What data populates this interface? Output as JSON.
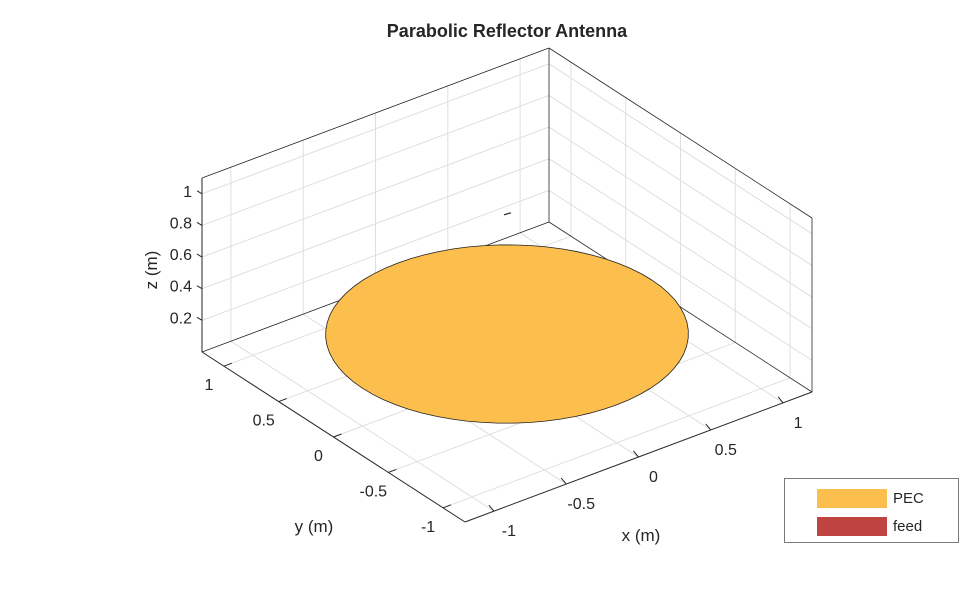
{
  "chart_data": {
    "type": "surface3d",
    "title": "Parabolic Reflector Antenna",
    "xlabel": "x (m)",
    "ylabel": "y (m)",
    "zlabel": "z (m)",
    "xlim": [
      -1.2,
      1.2
    ],
    "ylim": [
      -1.2,
      1.2
    ],
    "zlim": [
      0,
      1.1
    ],
    "xticks": [
      -1,
      -0.5,
      0,
      0.5,
      1
    ],
    "yticks": [
      -1,
      -0.5,
      0,
      0.5,
      1
    ],
    "zticks": [
      0.2,
      0.4,
      0.6,
      0.8,
      1
    ],
    "xtick_labels": [
      "-1",
      "-0.5",
      "0",
      "0.5",
      "1"
    ],
    "ytick_labels": [
      "-1",
      "-0.5",
      "0",
      "0.5",
      "1"
    ],
    "ztick_labels": [
      "0.2",
      "0.4",
      "0.6",
      "0.8",
      "1"
    ],
    "grid": true,
    "reflector": {
      "radius": 1,
      "rim_z": 0.24,
      "color": "#FCBE4C"
    },
    "feed": {
      "x": 0,
      "y": 0,
      "z": 1.0,
      "color": "#BF4340"
    },
    "legend": {
      "placement": "bottom-right",
      "entries": [
        {
          "label": "PEC",
          "color": "#FCBE4C"
        },
        {
          "label": "feed",
          "color": "#BF4340"
        }
      ]
    }
  }
}
